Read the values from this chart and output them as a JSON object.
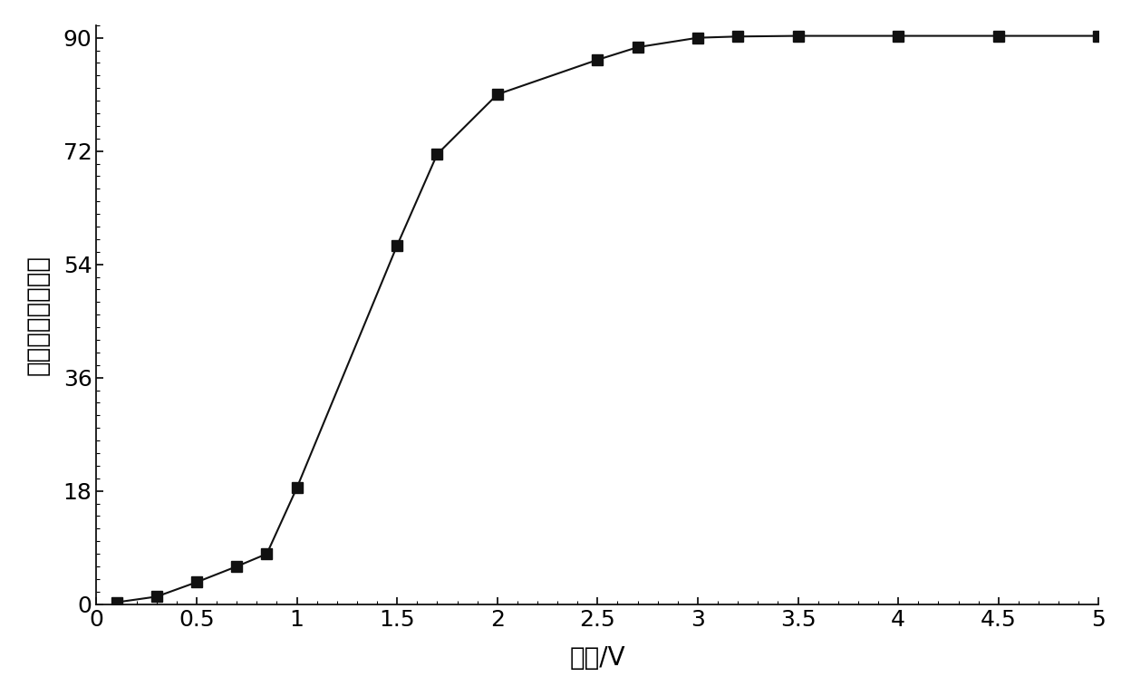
{
  "x": [
    0.1,
    0.3,
    0.5,
    0.7,
    0.85,
    1.0,
    1.5,
    1.7,
    2.0,
    2.5,
    2.7,
    3.0,
    3.2,
    3.5,
    4.0,
    4.5,
    5.0
  ],
  "y": [
    0.3,
    1.2,
    3.5,
    6.0,
    8.0,
    18.5,
    57.0,
    71.5,
    81.0,
    86.5,
    88.5,
    90.0,
    90.2,
    90.3,
    90.3,
    90.3,
    90.3
  ],
  "xlabel": "电压/V",
  "ylabel": "液晶分子指向角度",
  "xlim": [
    0,
    5.0
  ],
  "ylim": [
    0,
    92
  ],
  "xticks": [
    0,
    0.5,
    1.0,
    1.5,
    2.0,
    2.5,
    3.0,
    3.5,
    4.0,
    4.5,
    5.0
  ],
  "yticks": [
    0,
    18,
    36,
    54,
    72,
    90
  ],
  "marker": "s",
  "marker_color": "#111111",
  "line_color": "#111111",
  "marker_size": 9,
  "line_width": 1.5,
  "background_color": "#ffffff",
  "xlabel_fontsize": 20,
  "ylabel_fontsize": 20,
  "tick_fontsize": 18,
  "ylabel_chars": [
    "液晶",
    "分子",
    "指向",
    "角度"
  ]
}
